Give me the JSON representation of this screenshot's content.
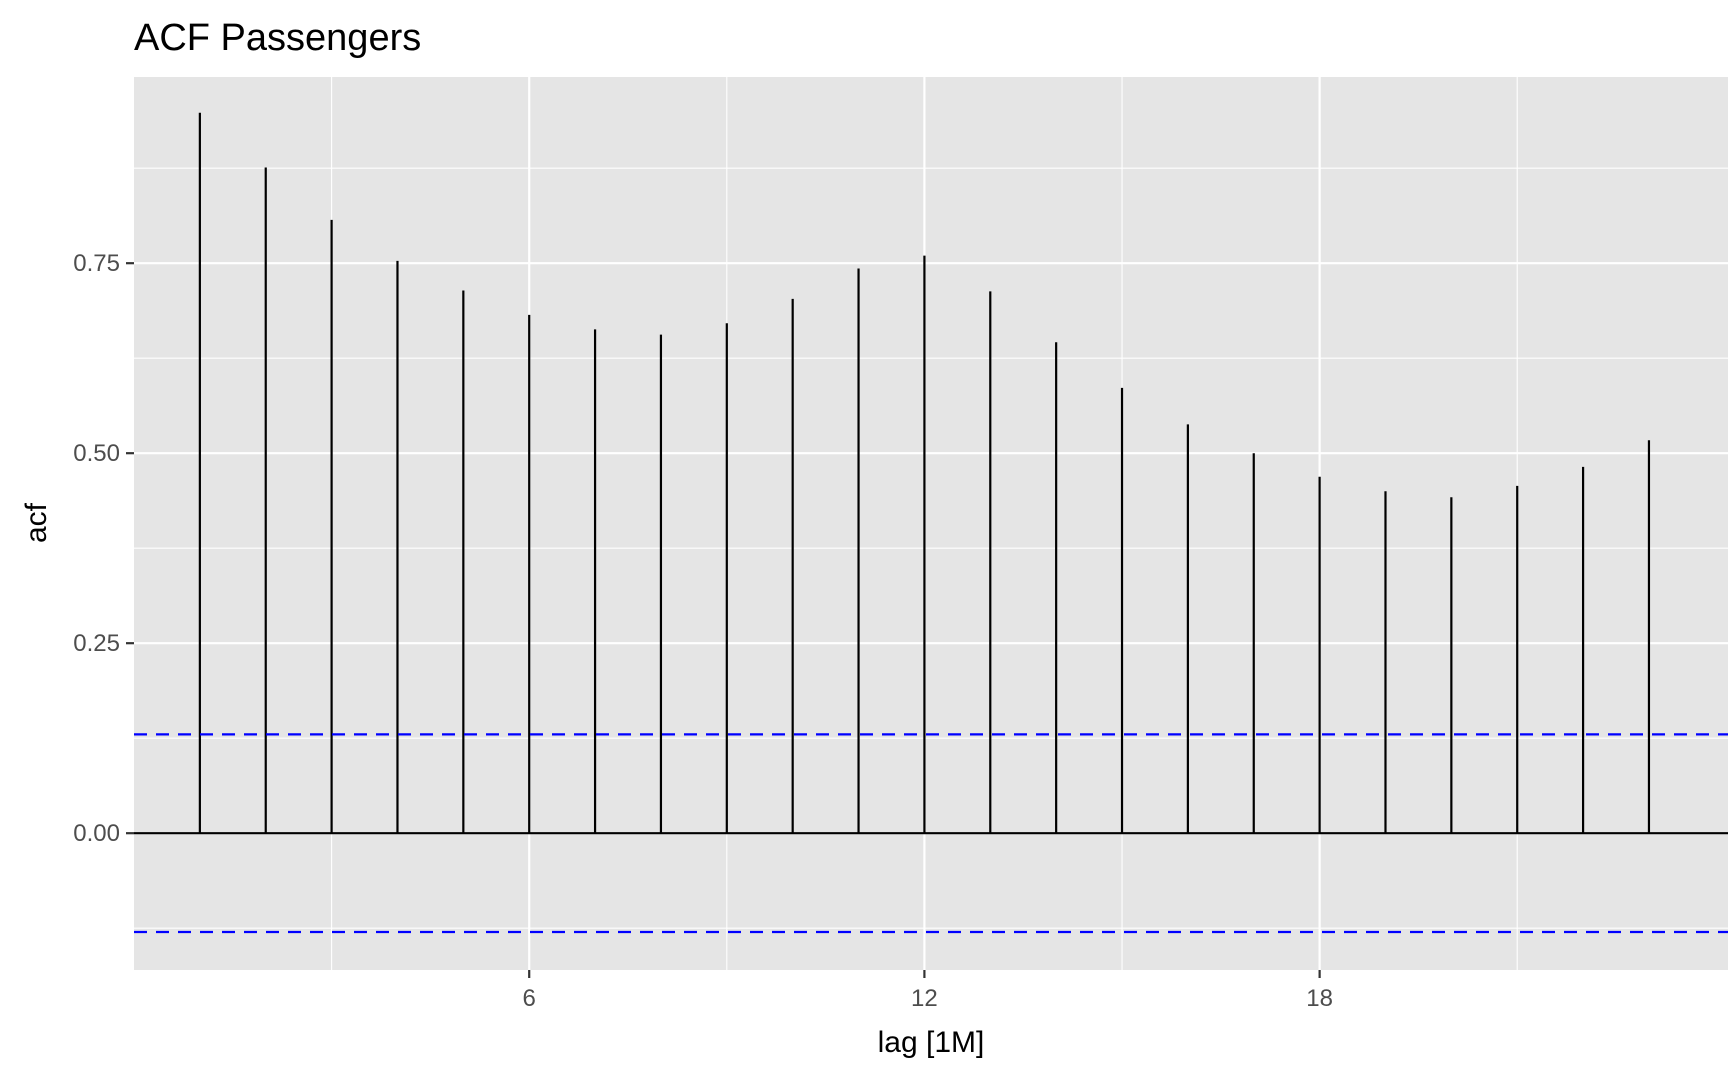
{
  "chart_data": {
    "type": "bar",
    "subtype": "acf-correlogram",
    "title": "ACF Passengers",
    "xlabel": "lag [1M]",
    "ylabel": "acf",
    "x_ticks": [
      6,
      12,
      18
    ],
    "y_ticks": [
      0.0,
      0.25,
      0.5,
      0.75
    ],
    "y_tick_labels": [
      "0.00",
      "0.25",
      "0.50",
      "0.75"
    ],
    "xlim": [
      0,
      24.2
    ],
    "ylim": [
      -0.18,
      0.995
    ],
    "lags": [
      1,
      2,
      3,
      4,
      5,
      6,
      7,
      8,
      9,
      10,
      11,
      12,
      13,
      14,
      15,
      16,
      17,
      18,
      19,
      20,
      21,
      22,
      23
    ],
    "values": [
      0.948,
      0.876,
      0.807,
      0.753,
      0.714,
      0.682,
      0.663,
      0.656,
      0.671,
      0.703,
      0.743,
      0.76,
      0.713,
      0.646,
      0.586,
      0.538,
      0.5,
      0.469,
      0.45,
      0.442,
      0.457,
      0.482,
      0.517
    ],
    "confidence_bound": 0.13,
    "grid": true,
    "colors": {
      "panel_background": "#e5e5e5",
      "grid_line": "#ffffff",
      "bar": "#000000",
      "zero_line": "#000000",
      "confidence_line": "#0000ff",
      "tick_text": "#4d4d4d"
    }
  }
}
